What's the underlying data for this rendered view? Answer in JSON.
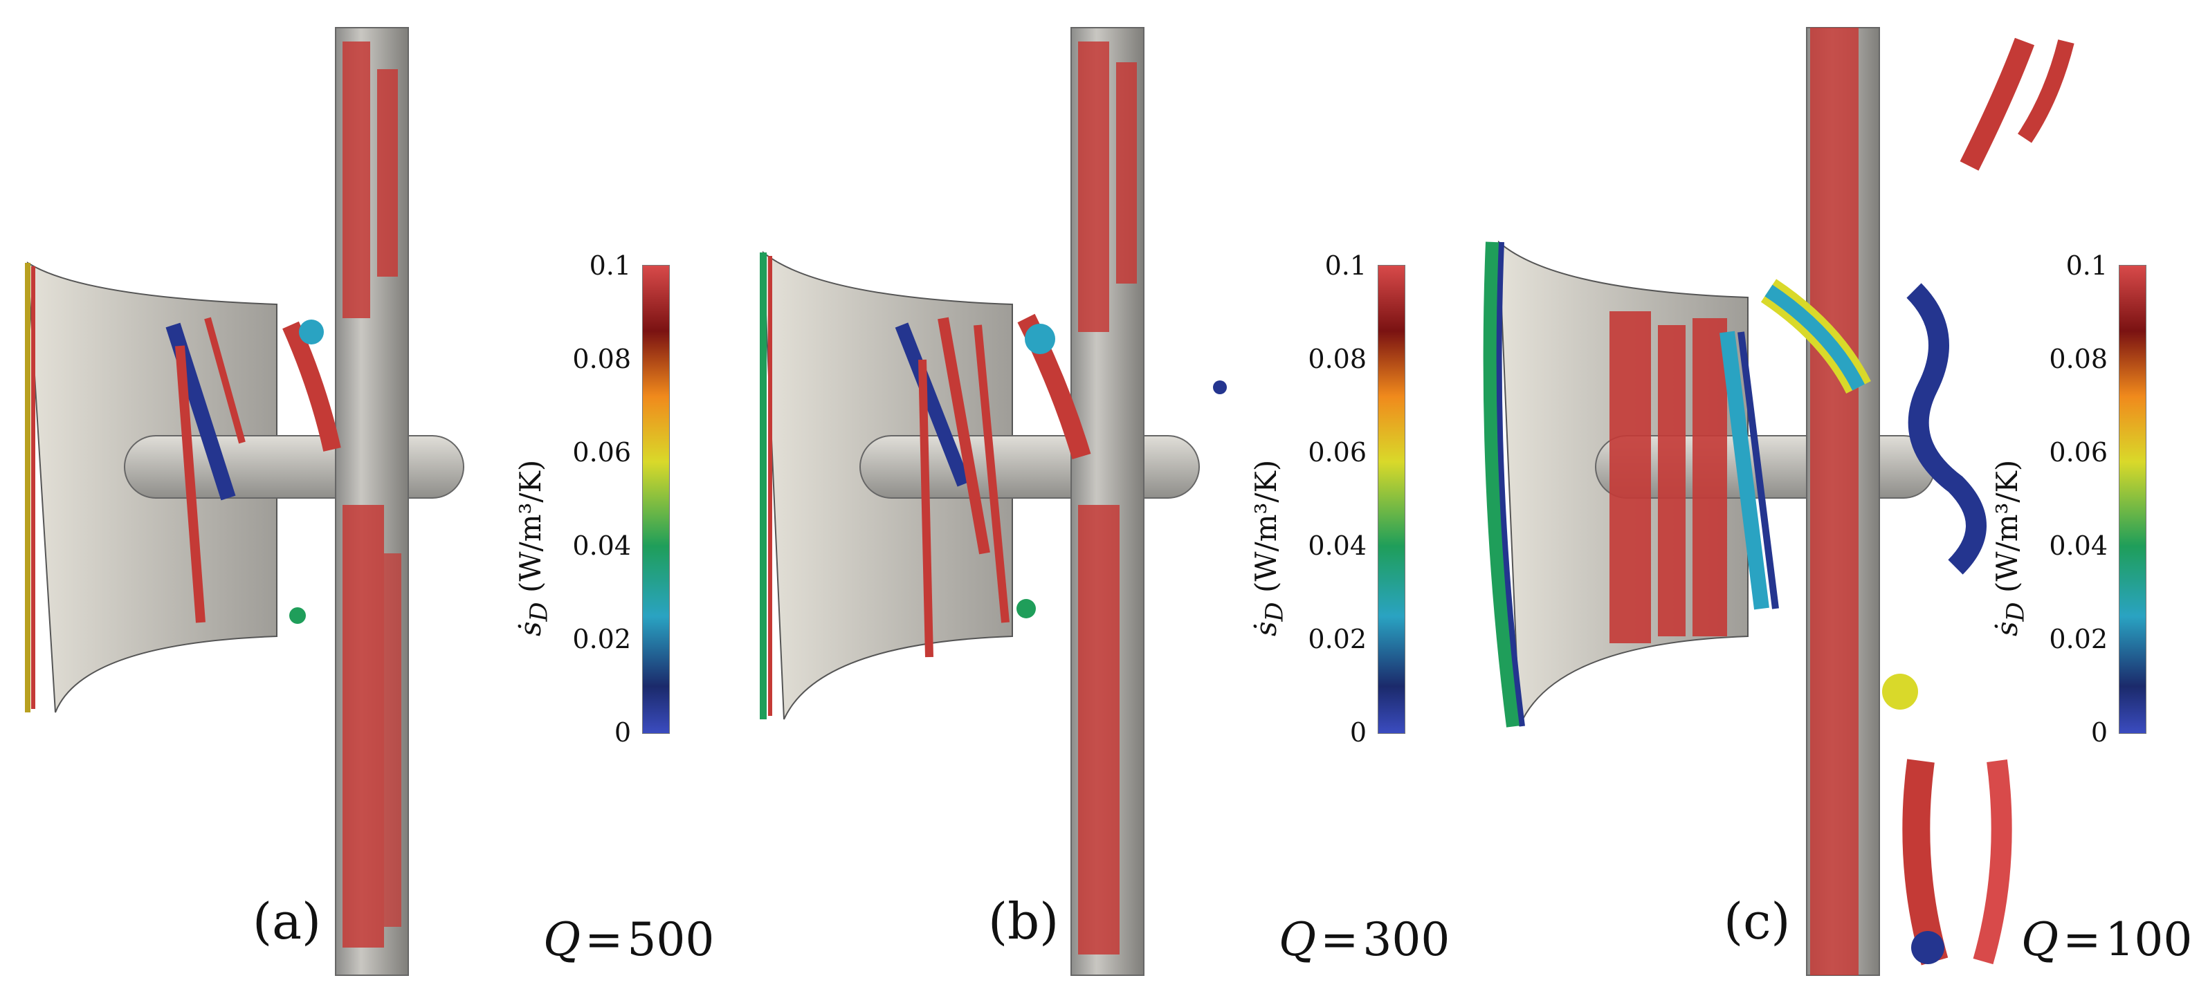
{
  "figure": {
    "panels": [
      {
        "label": "(a)",
        "q_label": "Q",
        "q_value": "500"
      },
      {
        "label": "(b)",
        "q_label": "Q",
        "q_value": "300"
      },
      {
        "label": "(c)",
        "q_label": "Q",
        "q_value": "100"
      }
    ],
    "colorbar": {
      "ticks": [
        "0.1",
        "0.08",
        "0.06",
        "0.04",
        "0.02",
        "0"
      ],
      "title_symbol": "ṡ",
      "title_subscript": "D",
      "title_units": "(W/m³/K)",
      "range": [
        0,
        0.1
      ],
      "colormap": [
        "#3b4cc0",
        "#1b2a6b",
        "#2aa3c2",
        "#1f9e5a",
        "#d9d92a",
        "#f08a1c",
        "#7a1212",
        "#d84a4a"
      ]
    },
    "colors": {
      "surface_gray": "#bfbdb6",
      "vortex_red": "#c43a36",
      "vortex_blue": "#24358f"
    }
  }
}
